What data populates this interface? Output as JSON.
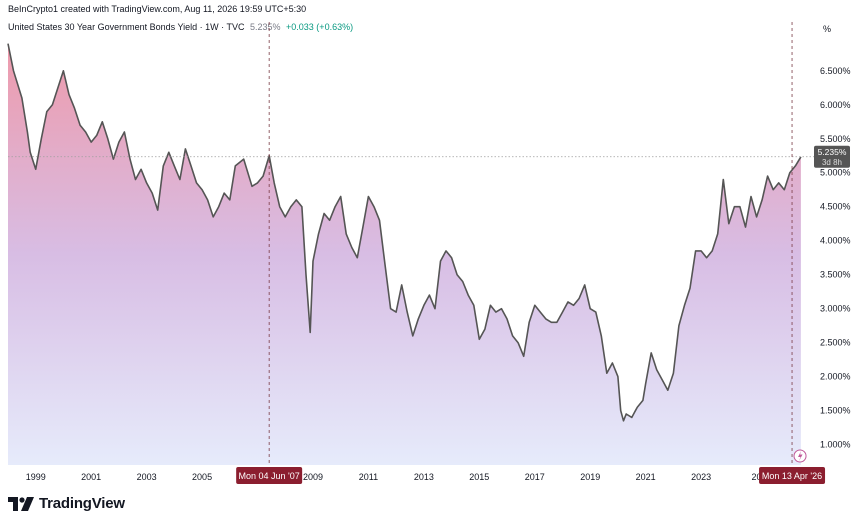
{
  "header": {
    "attribution": "BeInCrypto1 created with TradingView.com, Aug 11, 2026 19:59 UTC+5:30",
    "symbol_line": "United States 30 Year Government Bonds Yield · 1W · TVC",
    "last_price": "5.235%",
    "change": "+0.033 (+0.63%)",
    "unit": "%"
  },
  "footer": {
    "brand": "TradingView"
  },
  "colors": {
    "line": "#555555",
    "fill_top": "#ee9aab",
    "fill_mid": "#d8bde4",
    "fill_bottom": "#e6ebfb",
    "marker": "#8b1e2f",
    "price_tag": "#555555",
    "crosshair": "#7a3b45"
  },
  "chart_data": {
    "type": "area",
    "title": "United States 30 Year Government Bonds Yield",
    "ylabel": "%",
    "ylim": [
      0.7,
      7.1
    ],
    "xlim": [
      1998.0,
      2027.0
    ],
    "y_ticks": [
      "1.000%",
      "1.500%",
      "2.000%",
      "2.500%",
      "3.000%",
      "3.500%",
      "4.000%",
      "4.500%",
      "5.000%",
      "5.500%",
      "6.000%",
      "6.500%"
    ],
    "y_tick_values": [
      1.0,
      1.5,
      2.0,
      2.5,
      3.0,
      3.5,
      4.0,
      4.5,
      5.0,
      5.5,
      6.0,
      6.5
    ],
    "x_ticks": [
      "1999",
      "2001",
      "2003",
      "2005",
      "2009",
      "2011",
      "2013",
      "2015",
      "2017",
      "2019",
      "2021",
      "2023",
      "20"
    ],
    "x_tick_values": [
      1999,
      2001,
      2003,
      2005,
      2009,
      2011,
      2013,
      2015,
      2017,
      2019,
      2021,
      2023,
      2025
    ],
    "markers": [
      {
        "label": "Mon 04 Jun '07",
        "x": 2007.42
      },
      {
        "label": "Mon 13 Apr '26",
        "x": 2026.28
      }
    ],
    "last_value": {
      "label": "5.235%",
      "countdown": "3d 8h",
      "value": 5.235
    },
    "series": [
      {
        "x": [
          1998.0,
          1998.2,
          1998.5,
          1998.7,
          1998.8,
          1999.0,
          1999.2,
          1999.4,
          1999.6,
          1999.8,
          2000.0,
          2000.2,
          2000.4,
          2000.6,
          2000.8,
          2001.0,
          2001.2,
          2001.4,
          2001.6,
          2001.8,
          2002.0,
          2002.2,
          2002.4,
          2002.6,
          2002.8,
          2003.0,
          2003.2,
          2003.4,
          2003.6,
          2003.8,
          2004.0,
          2004.2,
          2004.4,
          2004.6,
          2004.8,
          2005.0,
          2005.2,
          2005.4,
          2005.6,
          2005.8,
          2006.0,
          2006.2,
          2006.5,
          2006.8,
          2007.0,
          2007.2,
          2007.42,
          2007.6,
          2007.8,
          2008.0,
          2008.2,
          2008.4,
          2008.6,
          2008.75,
          2008.9,
          2009.0,
          2009.2,
          2009.4,
          2009.6,
          2009.8,
          2010.0,
          2010.2,
          2010.4,
          2010.6,
          2010.8,
          2011.0,
          2011.2,
          2011.4,
          2011.6,
          2011.8,
          2012.0,
          2012.2,
          2012.4,
          2012.6,
          2012.8,
          2013.0,
          2013.2,
          2013.4,
          2013.6,
          2013.8,
          2014.0,
          2014.2,
          2014.4,
          2014.6,
          2014.8,
          2015.0,
          2015.2,
          2015.4,
          2015.6,
          2015.8,
          2016.0,
          2016.2,
          2016.4,
          2016.6,
          2016.8,
          2017.0,
          2017.2,
          2017.4,
          2017.6,
          2017.8,
          2018.0,
          2018.2,
          2018.4,
          2018.6,
          2018.8,
          2019.0,
          2019.2,
          2019.4,
          2019.6,
          2019.8,
          2020.0,
          2020.1,
          2020.2,
          2020.3,
          2020.5,
          2020.7,
          2020.9,
          2021.0,
          2021.2,
          2021.4,
          2021.6,
          2021.8,
          2022.0,
          2022.2,
          2022.4,
          2022.6,
          2022.8,
          2023.0,
          2023.2,
          2023.4,
          2023.6,
          2023.8,
          2024.0,
          2024.2,
          2024.4,
          2024.6,
          2024.8,
          2025.0,
          2025.2,
          2025.4,
          2025.6,
          2025.8,
          2026.0,
          2026.2,
          2026.4,
          2026.6
        ],
        "values": [
          6.9,
          6.5,
          6.1,
          5.6,
          5.3,
          5.05,
          5.5,
          5.9,
          6.0,
          6.25,
          6.5,
          6.15,
          5.95,
          5.7,
          5.6,
          5.45,
          5.55,
          5.75,
          5.5,
          5.2,
          5.45,
          5.6,
          5.2,
          4.9,
          5.05,
          4.85,
          4.7,
          4.45,
          5.1,
          5.3,
          5.1,
          4.9,
          5.35,
          5.1,
          4.85,
          4.75,
          4.6,
          4.35,
          4.5,
          4.7,
          4.6,
          5.1,
          5.2,
          4.8,
          4.85,
          4.95,
          5.25,
          4.85,
          4.5,
          4.35,
          4.5,
          4.6,
          4.5,
          3.5,
          2.65,
          3.7,
          4.1,
          4.4,
          4.3,
          4.5,
          4.65,
          4.1,
          3.9,
          3.75,
          4.2,
          4.65,
          4.5,
          4.3,
          3.65,
          3.0,
          2.95,
          3.35,
          2.95,
          2.6,
          2.85,
          3.05,
          3.2,
          3.0,
          3.7,
          3.85,
          3.75,
          3.5,
          3.4,
          3.2,
          3.05,
          2.55,
          2.7,
          3.05,
          2.95,
          3.0,
          2.85,
          2.6,
          2.5,
          2.3,
          2.8,
          3.05,
          2.95,
          2.85,
          2.8,
          2.8,
          2.95,
          3.1,
          3.05,
          3.15,
          3.35,
          3.0,
          2.95,
          2.6,
          2.05,
          2.2,
          2.0,
          1.5,
          1.35,
          1.45,
          1.4,
          1.55,
          1.65,
          1.9,
          2.35,
          2.1,
          1.95,
          1.8,
          2.05,
          2.75,
          3.05,
          3.3,
          3.85,
          3.85,
          3.75,
          3.85,
          4.1,
          4.9,
          4.25,
          4.5,
          4.5,
          4.2,
          4.65,
          4.35,
          4.6,
          4.95,
          4.75,
          4.85,
          4.75,
          5.0,
          5.1,
          5.235
        ]
      }
    ]
  }
}
